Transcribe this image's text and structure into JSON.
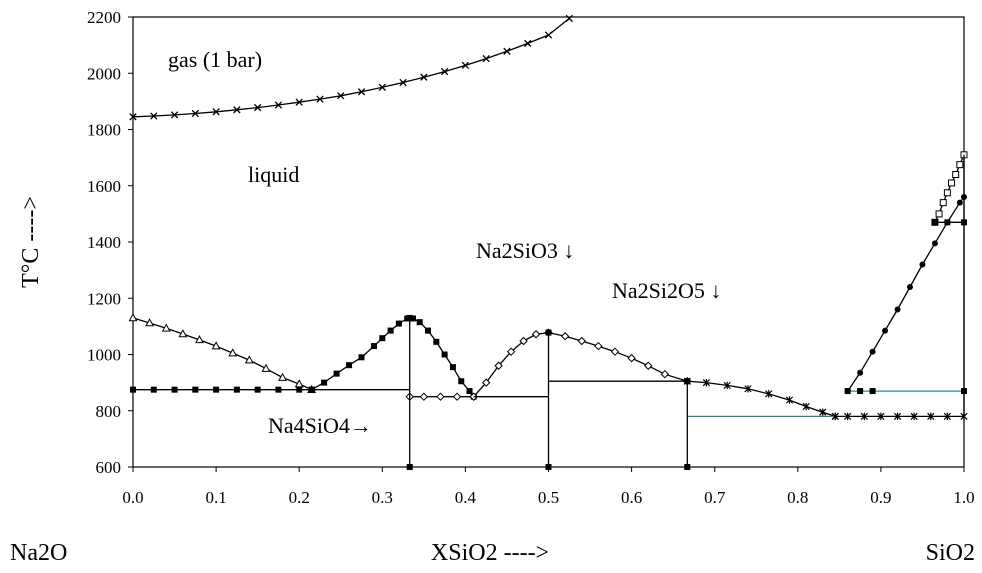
{
  "chart_data": {
    "type": "line",
    "x_range": [
      0,
      1
    ],
    "ylim": [
      600,
      2200
    ],
    "x_ticks": [
      "0.0",
      "0.1",
      "0.2",
      "0.3",
      "0.4",
      "0.5",
      "0.6",
      "0.7",
      "0.8",
      "0.9",
      "1.0"
    ],
    "y_ticks": [
      "600",
      "800",
      "1000",
      "1200",
      "1400",
      "1600",
      "1800",
      "2000",
      "2200"
    ],
    "ylabel": "T°C ---->",
    "xlabel": "XSiO2 ---->",
    "x_left_label": "Na2O",
    "x_right_label": "SiO2",
    "annotations": [
      "gas (1 bar)",
      "liquid",
      "Na2SiO3 ↓",
      "Na2Si2O5 ↓",
      "Na4SiO4→"
    ],
    "grid": false,
    "colors": {
      "lines": "#000000",
      "teal": "#2e8b8b"
    },
    "series": [
      {
        "marker": "x",
        "x": [
          0.0,
          0.025,
          0.05,
          0.075,
          0.1,
          0.125,
          0.15,
          0.175,
          0.2,
          0.225,
          0.25,
          0.275,
          0.3,
          0.325,
          0.35,
          0.375,
          0.4,
          0.425,
          0.45,
          0.475,
          0.5,
          0.525
        ],
        "y": [
          1845,
          1848,
          1852,
          1857,
          1863,
          1870,
          1878,
          1887,
          1897,
          1908,
          1920,
          1934,
          1950,
          1967,
          1986,
          2006,
          2028,
          2052,
          2078,
          2106,
          2136,
          2195
        ]
      },
      {
        "marker": "triangle",
        "x": [
          0.0,
          0.02,
          0.04,
          0.06,
          0.08,
          0.1,
          0.12,
          0.14,
          0.16,
          0.18,
          0.2,
          0.215
        ],
        "y": [
          1130,
          1112,
          1093,
          1073,
          1052,
          1030,
          1005,
          980,
          950,
          918,
          895,
          875
        ]
      },
      {
        "marker": "square",
        "x": [
          0.215,
          0.23,
          0.245,
          0.26,
          0.275,
          0.29,
          0.3,
          0.31,
          0.32,
          0.33,
          0.337,
          0.345,
          0.355,
          0.365,
          0.375,
          0.385,
          0.395,
          0.405,
          0.41
        ],
        "y": [
          875,
          900,
          932,
          962,
          990,
          1030,
          1058,
          1085,
          1110,
          1128,
          1128,
          1115,
          1085,
          1045,
          1000,
          955,
          905,
          870,
          850
        ]
      },
      {
        "marker": "diamond",
        "x": [
          0.41,
          0.425,
          0.44,
          0.455,
          0.47,
          0.485,
          0.5,
          0.52,
          0.54,
          0.56,
          0.58,
          0.6,
          0.62,
          0.64,
          0.667
        ],
        "y": [
          850,
          900,
          960,
          1010,
          1048,
          1072,
          1078,
          1065,
          1048,
          1030,
          1010,
          987,
          960,
          930,
          905
        ]
      },
      {
        "marker": "star",
        "x": [
          0.667,
          0.69,
          0.715,
          0.74,
          0.765,
          0.79,
          0.81,
          0.83,
          0.845
        ],
        "y": [
          905,
          900,
          890,
          878,
          860,
          838,
          815,
          795,
          780
        ]
      },
      {
        "marker": "circle",
        "x": [
          0.86,
          0.875,
          0.89,
          0.905,
          0.92,
          0.935,
          0.95,
          0.965,
          0.98,
          0.995,
          1.0
        ],
        "y": [
          870,
          935,
          1010,
          1085,
          1160,
          1240,
          1320,
          1395,
          1470,
          1540,
          1560
        ]
      },
      {
        "marker": "open-square",
        "x": [
          0.965,
          0.97,
          0.975,
          0.98,
          0.985,
          0.99,
          0.995,
          1.0
        ],
        "y": [
          1470,
          1500,
          1540,
          1575,
          1610,
          1640,
          1675,
          1710
        ]
      },
      {
        "marker": "square",
        "x": [
          0.0,
          0.025,
          0.05,
          0.075,
          0.1,
          0.125,
          0.15,
          0.175,
          0.2,
          0.215
        ],
        "y": [
          875,
          875,
          875,
          875,
          875,
          875,
          875,
          875,
          875,
          875
        ]
      },
      {
        "marker": "none",
        "x": [
          0.215,
          0.333
        ],
        "y": [
          875,
          875
        ]
      },
      {
        "marker": "diamond",
        "x": [
          0.333,
          0.35,
          0.37,
          0.39,
          0.41
        ],
        "y": [
          850,
          850,
          850,
          850,
          850
        ]
      },
      {
        "marker": "none",
        "x": [
          0.41,
          0.5
        ],
        "y": [
          850,
          850
        ]
      },
      {
        "marker": "none",
        "x": [
          0.5,
          0.667
        ],
        "y": [
          905,
          905
        ]
      },
      {
        "marker": "none",
        "x": [
          0.667,
          0.845
        ],
        "y": [
          780,
          780
        ]
      },
      {
        "marker": "star",
        "x": [
          0.845,
          0.86,
          0.88,
          0.9,
          0.92,
          0.94,
          0.96,
          0.98,
          1.0
        ],
        "y": [
          780,
          780,
          780,
          780,
          780,
          780,
          780,
          780,
          780
        ]
      },
      {
        "marker": "square",
        "x": [
          0.86,
          0.875,
          0.89,
          1.0
        ],
        "y": [
          870,
          870,
          870,
          870
        ]
      },
      {
        "marker": "square",
        "x": [
          0.965,
          0.98,
          1.0
        ],
        "y": [
          1470,
          1470,
          1470
        ]
      },
      {
        "marker": "square",
        "x": [
          0.333,
          0.333
        ],
        "y": [
          600,
          1130
        ]
      },
      {
        "marker": "square",
        "x": [
          0.5,
          0.5
        ],
        "y": [
          600,
          1078
        ]
      },
      {
        "marker": "square",
        "x": [
          0.667,
          0.667
        ],
        "y": [
          600,
          905
        ]
      },
      {
        "marker": "none",
        "x": [
          1.0,
          1.0
        ],
        "y": [
          780,
          1710
        ]
      }
    ]
  }
}
